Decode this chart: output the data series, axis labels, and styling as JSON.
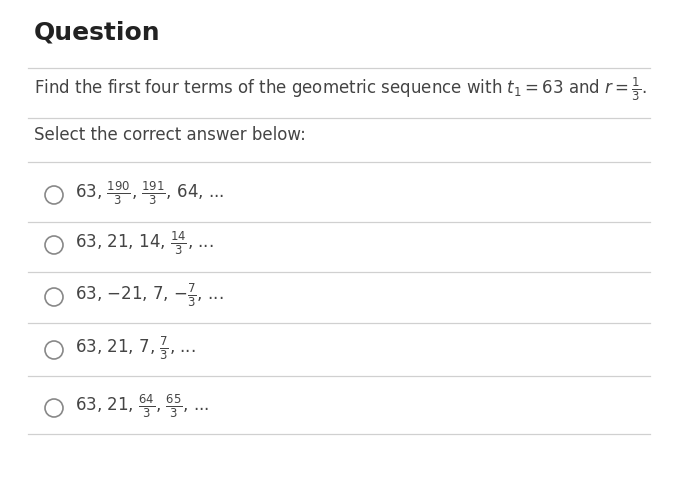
{
  "title": "Question",
  "question_text": "Find the first four terms of the geometric sequence with $t_1 = 63$ and $r = \\frac{1}{3}$.",
  "select_text": "Select the correct answer below:",
  "option_texts": [
    "63, $\\frac{190}{3}$, $\\frac{191}{3}$, 64, ...",
    "63, 21, 14, $\\frac{14}{3}$, ...",
    "63, −21, 7, −$\\frac{7}{3}$, ...",
    "63, 21, 7, $\\frac{7}{3}$, ...",
    "63, 21, $\\frac{64}{3}$, $\\frac{65}{3}$, ..."
  ],
  "background_color": "#ffffff",
  "title_color": "#222222",
  "body_color": "#444444",
  "line_color": "#d0d0d0",
  "circle_color": "#888888",
  "title_fontsize": 18,
  "body_fontsize": 12,
  "fig_width": 6.78,
  "fig_height": 5.01,
  "dpi": 100
}
